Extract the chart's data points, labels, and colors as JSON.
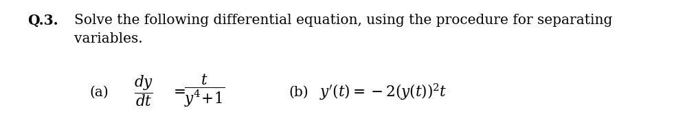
{
  "background_color": "#ffffff",
  "text_color": "#000000",
  "q_label": "Q.3.",
  "main_text_line1": "Solve the following differential equation, using the procedure for separating",
  "main_text_line2": "variables.",
  "part_a_label": "(a)",
  "part_b_label": "(b)",
  "font_size_main": 14.5,
  "font_size_eq": 15.5,
  "fig_width": 9.97,
  "fig_height": 1.76,
  "dpi": 100
}
